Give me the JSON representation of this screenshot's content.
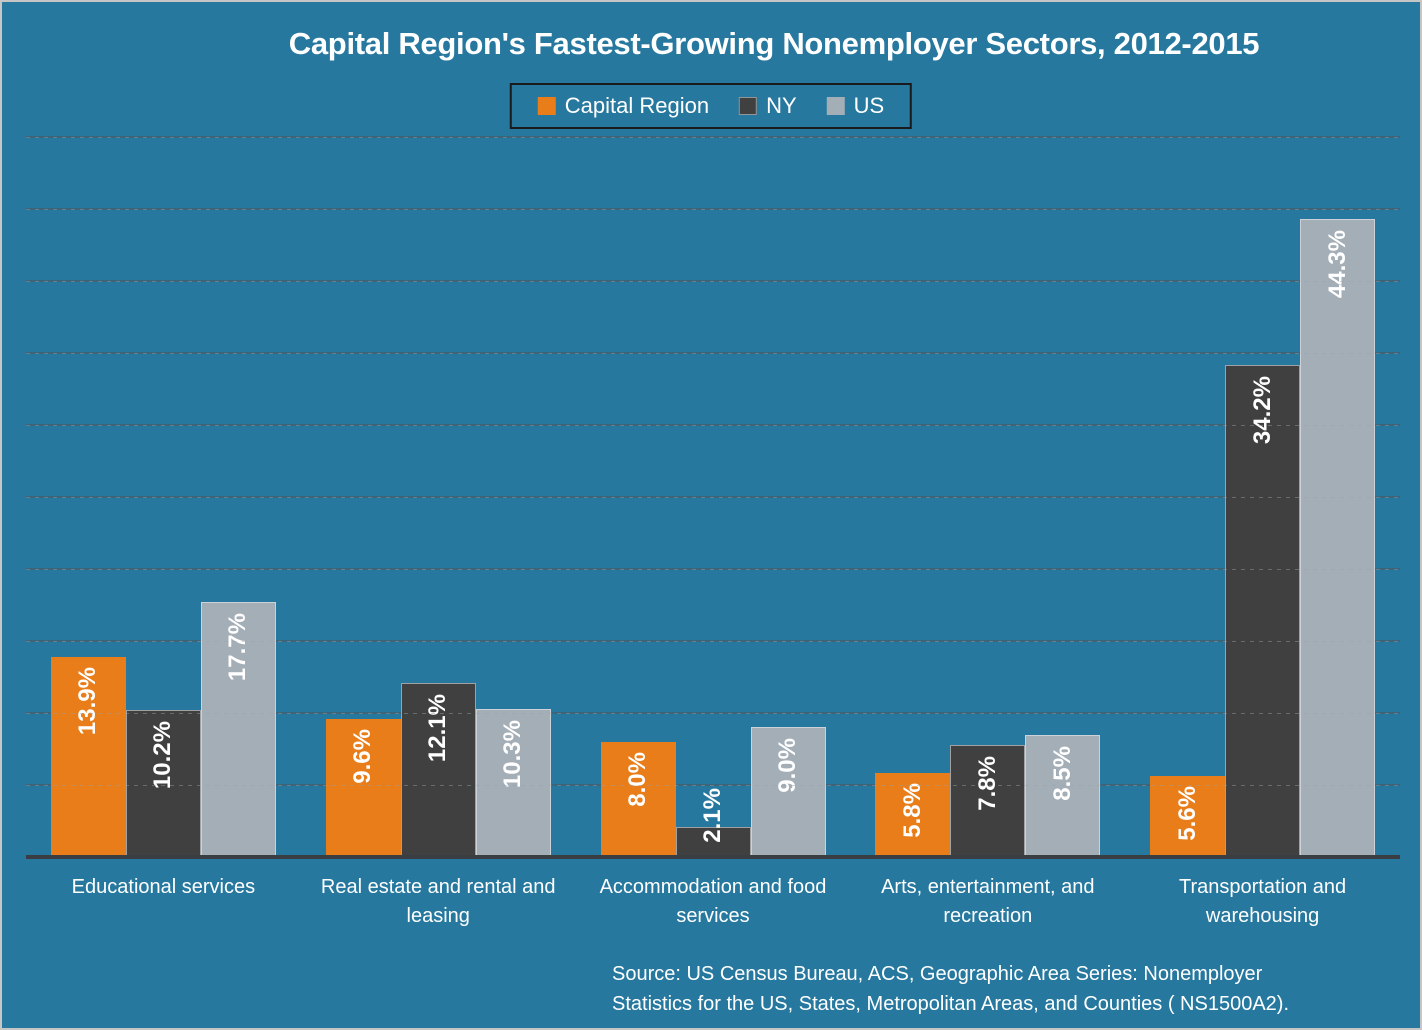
{
  "chart_data": {
    "type": "bar",
    "title": "Capital Region's Fastest-Growing Nonemployer Sectors, 2012-2015",
    "categories": [
      "Educational services",
      "Real estate and rental and leasing",
      "Accommodation and food services",
      "Arts, entertainment, and recreation",
      "Transportation and warehousing"
    ],
    "series": [
      {
        "name": "Capital Region",
        "color": "#E87D1A",
        "values": [
          13.9,
          9.6,
          8.0,
          5.8,
          5.6
        ]
      },
      {
        "name": "NY",
        "color": "#404040",
        "values": [
          10.2,
          12.1,
          2.1,
          7.8,
          34.2
        ]
      },
      {
        "name": "US",
        "color": "#A4AEB7",
        "values": [
          17.7,
          10.3,
          9.0,
          8.5,
          44.3
        ]
      }
    ],
    "value_suffix": "%",
    "ylim": [
      0,
      50
    ],
    "gridline_step": 5,
    "grid": true,
    "legend_position": "top",
    "xlabel": "",
    "ylabel": "",
    "source_lines": [
      "Source: US Census Bureau, ACS, Geographic Area Series: Nonemployer",
      "Statistics for the US, States, Metropolitan Areas, and Counties ( NS1500A2)."
    ]
  },
  "colors": {
    "background": "#26789F",
    "title_text": "#FFFFFF",
    "data_label": "#FFFFFF",
    "axis_line": "#3A3E42",
    "gridline": "rgba(70,95,108,0.75)",
    "outer_border": "#C6C6C6",
    "legend_border": "#1A1A1A"
  }
}
